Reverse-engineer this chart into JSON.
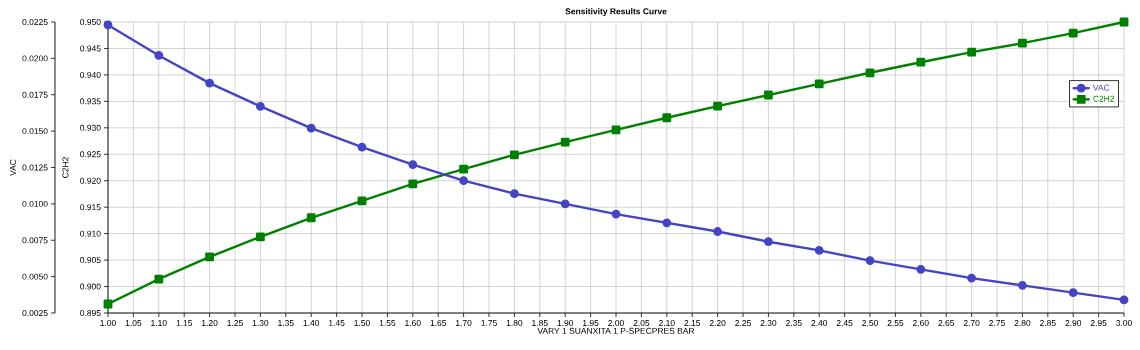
{
  "chart_data": {
    "type": "line",
    "title": "Sensitivity Results Curve",
    "xlabel": "VARY   1 SUANXITA 1 P-SPECPRES BAR",
    "ylabel": "VAC",
    "y2label": "C2H2",
    "x": [
      1.0,
      1.1,
      1.2,
      1.3,
      1.4,
      1.5,
      1.6,
      1.7,
      1.8,
      1.9,
      2.0,
      2.1,
      2.2,
      2.3,
      2.4,
      2.5,
      2.6,
      2.7,
      2.8,
      2.9,
      3.0
    ],
    "series": [
      {
        "name": "VAC",
        "color": "#4444c4",
        "marker": "circle",
        "values": [
          0.0223,
          0.0202,
          0.0183,
          0.0167,
          0.0152,
          0.0139,
          0.0127,
          0.0116,
          0.0107,
          0.01,
          0.0093,
          0.0087,
          0.0081,
          0.0074,
          0.0068,
          0.0061,
          0.0055,
          0.0049,
          0.0044,
          0.0039,
          0.0034
        ]
      },
      {
        "name": "C2H2",
        "color": "#008000",
        "marker": "square",
        "axis": "y2",
        "values": [
          0.8967,
          0.9014,
          0.9056,
          0.9094,
          0.913,
          0.9162,
          0.9194,
          0.9222,
          0.9249,
          0.9273,
          0.9296,
          0.9319,
          0.9341,
          0.9362,
          0.9383,
          0.9404,
          0.9424,
          0.9443,
          0.946,
          0.9479,
          0.95
        ]
      }
    ],
    "xlim": [
      1.0,
      3.0
    ],
    "xticks": [
      {
        "value": 1.0,
        "label": "1.00"
      },
      {
        "value": 1.05,
        "label": "1.05"
      },
      {
        "value": 1.1,
        "label": "1.10"
      },
      {
        "value": 1.15,
        "label": "1.15"
      },
      {
        "value": 1.2,
        "label": "1.20"
      },
      {
        "value": 1.25,
        "label": "1.25"
      },
      {
        "value": 1.3,
        "label": "1.30"
      },
      {
        "value": 1.35,
        "label": "1.35"
      },
      {
        "value": 1.4,
        "label": "1.40"
      },
      {
        "value": 1.45,
        "label": "1.45"
      },
      {
        "value": 1.5,
        "label": "1.50"
      },
      {
        "value": 1.55,
        "label": "1.55"
      },
      {
        "value": 1.6,
        "label": "1.60"
      },
      {
        "value": 1.65,
        "label": "1.65"
      },
      {
        "value": 1.7,
        "label": "1.70"
      },
      {
        "value": 1.75,
        "label": "1.75"
      },
      {
        "value": 1.8,
        "label": "1.80"
      },
      {
        "value": 1.85,
        "label": "1.85"
      },
      {
        "value": 1.9,
        "label": "1.90"
      },
      {
        "value": 1.95,
        "label": "1.95"
      },
      {
        "value": 2.0,
        "label": "2.00"
      },
      {
        "value": 2.05,
        "label": "2.05"
      },
      {
        "value": 2.1,
        "label": "2.10"
      },
      {
        "value": 2.15,
        "label": "2.15"
      },
      {
        "value": 2.2,
        "label": "2.20"
      },
      {
        "value": 2.25,
        "label": "2.25"
      },
      {
        "value": 2.3,
        "label": "2.30"
      },
      {
        "value": 2.35,
        "label": "2.35"
      },
      {
        "value": 2.4,
        "label": "2.40"
      },
      {
        "value": 2.45,
        "label": "2.45"
      },
      {
        "value": 2.5,
        "label": "2.50"
      },
      {
        "value": 2.55,
        "label": "2.55"
      },
      {
        "value": 2.6,
        "label": "2.60"
      },
      {
        "value": 2.65,
        "label": "2.65"
      },
      {
        "value": 2.7,
        "label": "2.70"
      },
      {
        "value": 2.75,
        "label": "2.75"
      },
      {
        "value": 2.8,
        "label": "2.80"
      },
      {
        "value": 2.85,
        "label": "2.85"
      },
      {
        "value": 2.9,
        "label": "2.90"
      },
      {
        "value": 2.95,
        "label": "2.95"
      },
      {
        "value": 3.0,
        "label": "3.00"
      }
    ],
    "ylim": [
      0.0025,
      0.0225
    ],
    "yticks": [
      0.0025,
      {
        "value": 0.005,
        "label": "0.0050"
      },
      0.0075,
      {
        "value": 0.01,
        "label": "0.0100"
      },
      0.0125,
      {
        "value": 0.015,
        "label": "0.0150"
      },
      0.0175,
      {
        "value": 0.02,
        "label": "0.0200"
      },
      0.0225
    ],
    "y2lim": [
      0.895,
      0.95
    ],
    "y2ticks": [
      0.895,
      {
        "value": 0.9,
        "label": "0.900"
      },
      0.905,
      {
        "value": 0.91,
        "label": "0.910"
      },
      0.915,
      {
        "value": 0.92,
        "label": "0.920"
      },
      0.925,
      {
        "value": 0.93,
        "label": "0.930"
      },
      0.935,
      {
        "value": 0.94,
        "label": "0.940"
      },
      0.945,
      {
        "value": 0.95,
        "label": "0.950"
      }
    ],
    "grid": true,
    "legend": "top right",
    "line_style": "solid"
  }
}
